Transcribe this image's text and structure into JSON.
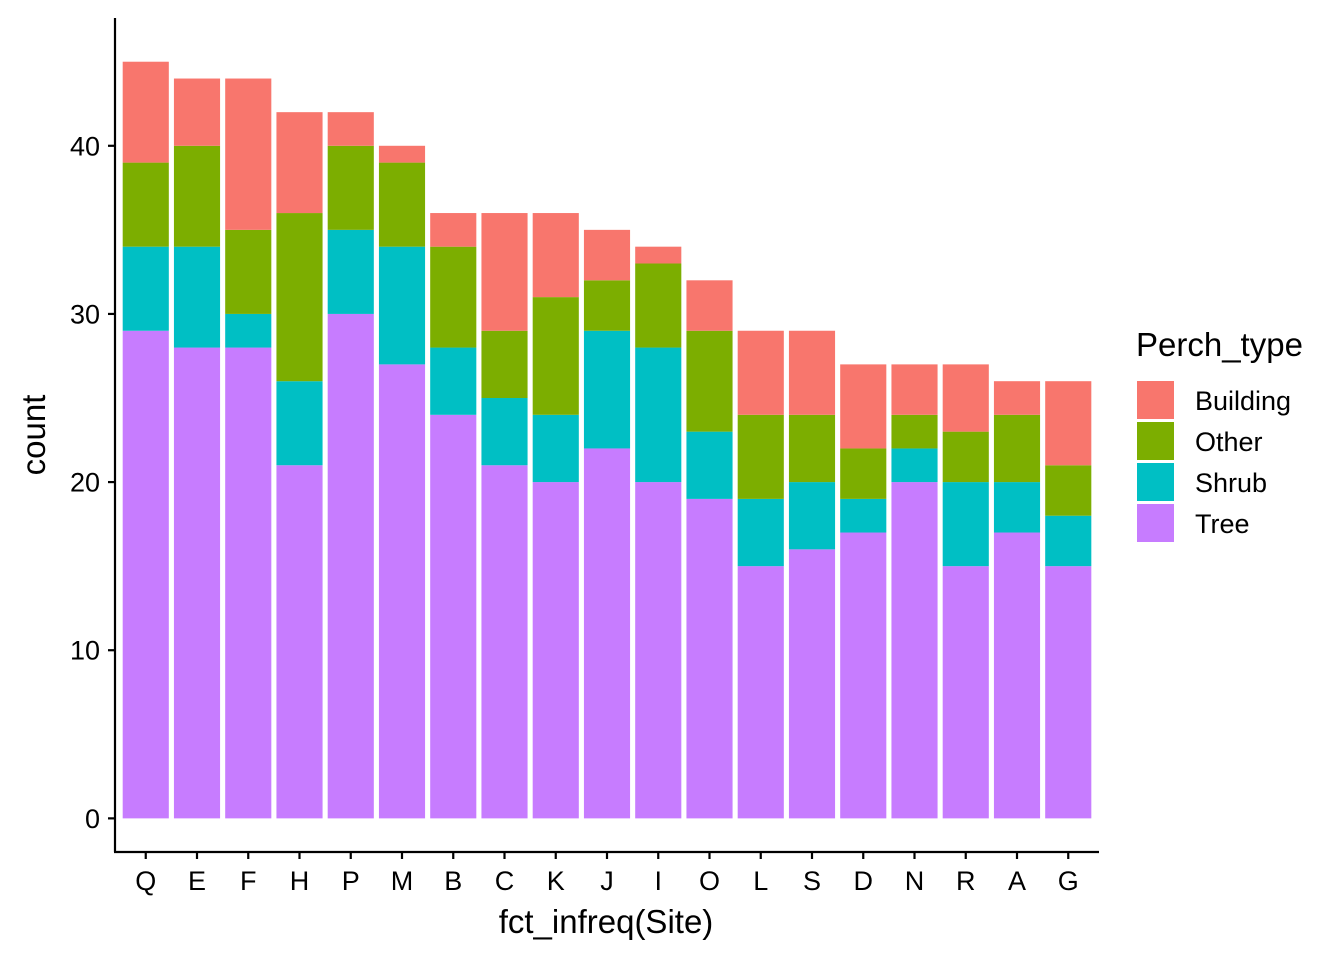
{
  "chart_data": {
    "type": "bar",
    "stacked": true,
    "xlabel": "fct_infreq(Site)",
    "ylabel": "count",
    "ylim": [
      -2,
      47.6
    ],
    "yticks": [
      0,
      10,
      20,
      30,
      40
    ],
    "legend": {
      "title": "Perch_type",
      "position": "right"
    },
    "categories": [
      "Q",
      "E",
      "F",
      "H",
      "P",
      "M",
      "B",
      "C",
      "K",
      "J",
      "I",
      "O",
      "L",
      "S",
      "D",
      "N",
      "R",
      "A",
      "G"
    ],
    "series": [
      {
        "name": "Tree",
        "color": "#C77CFF",
        "values": [
          29,
          28,
          28,
          21,
          30,
          27,
          24,
          21,
          20,
          22,
          20,
          19,
          15,
          16,
          17,
          20,
          15,
          17,
          15
        ]
      },
      {
        "name": "Shrub",
        "color": "#00BFC4",
        "values": [
          5,
          6,
          2,
          5,
          5,
          7,
          4,
          4,
          4,
          7,
          8,
          4,
          4,
          4,
          2,
          2,
          5,
          3,
          3
        ]
      },
      {
        "name": "Other",
        "color": "#7CAE00",
        "values": [
          5,
          6,
          5,
          10,
          5,
          5,
          6,
          4,
          7,
          3,
          5,
          6,
          5,
          4,
          3,
          2,
          3,
          4,
          3
        ]
      },
      {
        "name": "Building",
        "color": "#F8766D",
        "values": [
          6,
          4,
          9,
          6,
          2,
          1,
          2,
          7,
          5,
          3,
          1,
          3,
          5,
          5,
          5,
          3,
          4,
          2,
          5
        ]
      }
    ],
    "legend_order": [
      "Building",
      "Other",
      "Shrub",
      "Tree"
    ]
  }
}
